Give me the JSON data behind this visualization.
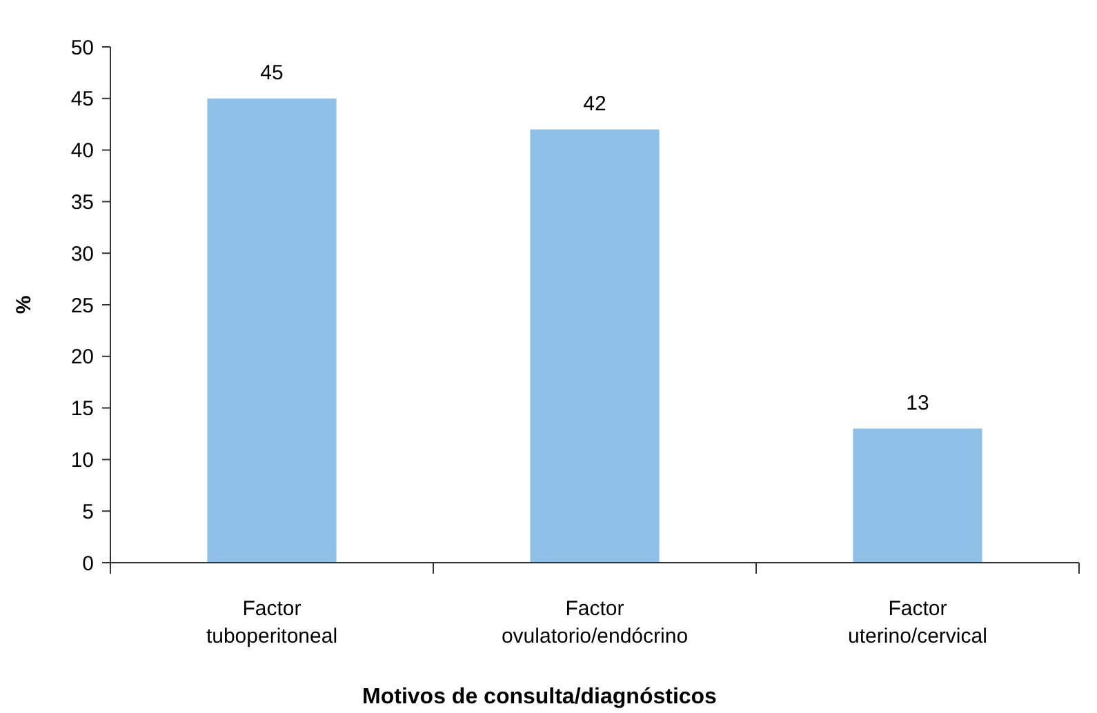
{
  "chart_data": {
    "type": "bar",
    "xlabel": "Motivos de consulta/diagnósticos",
    "ylabel": "%",
    "categories": [
      "Factor tuboperitoneal",
      "Factor ovulatorio/endócrino",
      "Factor uterino/cervical"
    ],
    "values": [
      45,
      42,
      13
    ],
    "color": "#8fc1e8",
    "ylim": [
      0,
      50
    ],
    "yticks": [
      0,
      5,
      10,
      15,
      20,
      25,
      30,
      35,
      40,
      45,
      50
    ],
    "data_labels": true,
    "grid": false
  }
}
